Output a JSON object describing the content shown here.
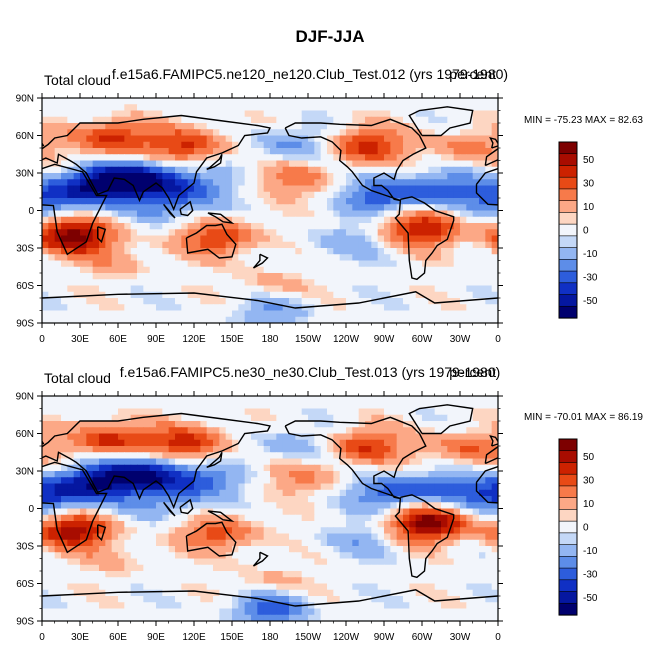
{
  "figure": {
    "title": "DJF-JJA"
  },
  "chart_data": [
    {
      "type": "heatmap",
      "name": "panel-top",
      "left_label": "Total cloud",
      "center_label": "f.e15a6.FAMIPC5.ne120_ne120.Club_Test.012 (yrs 1979-1980)",
      "right_label": "percent",
      "stats": "MIN = -75.23 MAX =  82.63",
      "x_ticks": [
        "0",
        "30E",
        "60E",
        "90E",
        "120E",
        "150E",
        "180",
        "150W",
        "120W",
        "90W",
        "60W",
        "30W",
        "0"
      ],
      "y_ticks": [
        "90N",
        "60N",
        "30N",
        "0",
        "30S",
        "60S",
        "90S"
      ],
      "xlim": [
        0,
        360
      ],
      "ylim": [
        -90,
        90
      ],
      "colorbar": {
        "labels": [
          "50",
          "30",
          "10",
          "0",
          "-10",
          "-30",
          "-50"
        ],
        "colors": [
          "#7d0000",
          "#a80c00",
          "#cc2200",
          "#e84a16",
          "#f77a4a",
          "#fca886",
          "#fdd6c2",
          "#f2f5fb",
          "#c4d8f7",
          "#93b6f2",
          "#5d8de8",
          "#2d5ddc",
          "#1030c4",
          "#0517a0",
          "#00006e"
        ]
      },
      "anomalies": [
        {
          "lon": 25,
          "lat": -20,
          "v": 65
        },
        {
          "lon": 50,
          "lat": 22,
          "v": -60
        },
        {
          "lon": 82,
          "lat": 25,
          "v": -45
        },
        {
          "lon": 120,
          "lat": 20,
          "v": -25
        },
        {
          "lon": 55,
          "lat": 58,
          "v": 45
        },
        {
          "lon": 115,
          "lat": 52,
          "v": 40
        },
        {
          "lon": 140,
          "lat": -22,
          "v": 40
        },
        {
          "lon": 300,
          "lat": -15,
          "v": 50
        },
        {
          "lon": 270,
          "lat": 12,
          "v": -40
        },
        {
          "lon": 255,
          "lat": 52,
          "v": 45
        },
        {
          "lon": 335,
          "lat": 50,
          "v": 25
        },
        {
          "lon": 320,
          "lat": 18,
          "v": -30
        },
        {
          "lon": 200,
          "lat": 52,
          "v": -25
        },
        {
          "lon": 200,
          "lat": 25,
          "v": 25
        },
        {
          "lon": 10,
          "lat": 10,
          "v": -40
        },
        {
          "lon": 100,
          "lat": 5,
          "v": -25
        },
        {
          "lon": 180,
          "lat": -60,
          "v": 15
        },
        {
          "lon": 180,
          "lat": -80,
          "v": -20
        },
        {
          "lon": 60,
          "lat": -40,
          "v": 15
        },
        {
          "lon": 240,
          "lat": -25,
          "v": -15
        }
      ]
    },
    {
      "type": "heatmap",
      "name": "panel-bottom",
      "left_label": "Total cloud",
      "center_label": "f.e15a6.FAMIPC5.ne30_ne30.Club_Test.013 (yrs 1979-1980)",
      "right_label": "percent",
      "stats": "MIN = -70.01 MAX =  86.19",
      "x_ticks": [
        "0",
        "30E",
        "60E",
        "90E",
        "120E",
        "150E",
        "180",
        "150W",
        "120W",
        "90W",
        "60W",
        "30W",
        "0"
      ],
      "y_ticks": [
        "90N",
        "60N",
        "30N",
        "0",
        "30S",
        "60S",
        "90S"
      ],
      "xlim": [
        0,
        360
      ],
      "ylim": [
        -90,
        90
      ],
      "colorbar": {
        "labels": [
          "50",
          "30",
          "10",
          "0",
          "-10",
          "-30",
          "-50"
        ],
        "colors": [
          "#7d0000",
          "#a80c00",
          "#cc2200",
          "#e84a16",
          "#f77a4a",
          "#fca886",
          "#fdd6c2",
          "#f2f5fb",
          "#c4d8f7",
          "#93b6f2",
          "#5d8de8",
          "#2d5ddc",
          "#1030c4",
          "#0517a0",
          "#00006e"
        ]
      },
      "anomalies": [
        {
          "lon": 25,
          "lat": -18,
          "v": 55
        },
        {
          "lon": 45,
          "lat": 22,
          "v": -55
        },
        {
          "lon": 85,
          "lat": 28,
          "v": -50
        },
        {
          "lon": 125,
          "lat": 22,
          "v": -30
        },
        {
          "lon": 55,
          "lat": 55,
          "v": 45
        },
        {
          "lon": 115,
          "lat": 52,
          "v": 45
        },
        {
          "lon": 140,
          "lat": -20,
          "v": 35
        },
        {
          "lon": 305,
          "lat": -12,
          "v": 65
        },
        {
          "lon": 275,
          "lat": 12,
          "v": -35
        },
        {
          "lon": 255,
          "lat": 50,
          "v": 40
        },
        {
          "lon": 335,
          "lat": 48,
          "v": 30
        },
        {
          "lon": 320,
          "lat": 18,
          "v": -25
        },
        {
          "lon": 200,
          "lat": 50,
          "v": -20
        },
        {
          "lon": 205,
          "lat": 25,
          "v": 20
        },
        {
          "lon": 5,
          "lat": 10,
          "v": -45
        },
        {
          "lon": 95,
          "lat": 5,
          "v": -20
        },
        {
          "lon": 180,
          "lat": -60,
          "v": 15
        },
        {
          "lon": 180,
          "lat": -80,
          "v": -35
        },
        {
          "lon": 60,
          "lat": -42,
          "v": 10
        },
        {
          "lon": 250,
          "lat": -25,
          "v": -15
        }
      ]
    }
  ]
}
